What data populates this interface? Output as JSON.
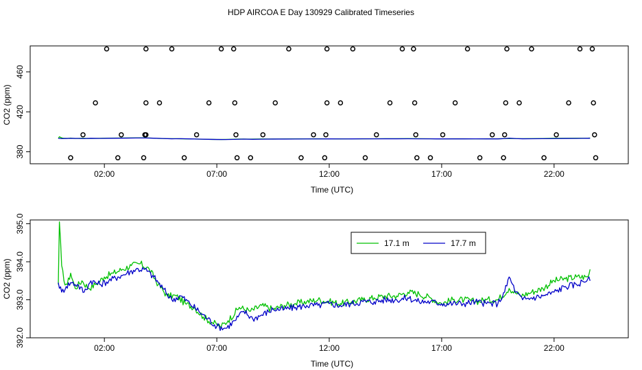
{
  "figure": {
    "title": "HDP AIRCOA E  Day 130929  Calibrated Timeseries"
  },
  "chart_data": [
    {
      "type": "scatter",
      "xlabel": "Time (UTC)",
      "ylabel": "CO2 (ppm)",
      "xlim": [
        -1.3,
        25.3
      ],
      "ylim": [
        368,
        486
      ],
      "x_ticks": [
        {
          "value": 2,
          "label": "02:00"
        },
        {
          "value": 7,
          "label": "07:00"
        },
        {
          "value": 12,
          "label": "12:00"
        },
        {
          "value": 17,
          "label": "17:00"
        },
        {
          "value": 22,
          "label": "22:00"
        }
      ],
      "y_ticks": [
        {
          "value": 380,
          "label": "380"
        },
        {
          "value": 420,
          "label": "420"
        },
        {
          "value": 460,
          "label": "460"
        }
      ],
      "calibration_points": [
        {
          "x": 0.5,
          "y": 374
        },
        {
          "x": 1.05,
          "y": 397
        },
        {
          "x": 1.6,
          "y": 429
        },
        {
          "x": 2.1,
          "y": 483
        },
        {
          "x": 2.6,
          "y": 374
        },
        {
          "x": 2.75,
          "y": 397
        },
        {
          "x": 3.75,
          "y": 374
        },
        {
          "x": 3.8,
          "y": 397
        },
        {
          "x": 3.85,
          "y": 397
        },
        {
          "x": 3.85,
          "y": 429
        },
        {
          "x": 3.85,
          "y": 483
        },
        {
          "x": 4.45,
          "y": 429
        },
        {
          "x": 5.0,
          "y": 483
        },
        {
          "x": 5.55,
          "y": 374
        },
        {
          "x": 6.1,
          "y": 397
        },
        {
          "x": 6.65,
          "y": 429
        },
        {
          "x": 7.2,
          "y": 483
        },
        {
          "x": 7.75,
          "y": 483
        },
        {
          "x": 7.8,
          "y": 429
        },
        {
          "x": 7.85,
          "y": 397
        },
        {
          "x": 7.9,
          "y": 374
        },
        {
          "x": 8.5,
          "y": 374
        },
        {
          "x": 9.05,
          "y": 397
        },
        {
          "x": 9.6,
          "y": 429
        },
        {
          "x": 10.2,
          "y": 483
        },
        {
          "x": 10.75,
          "y": 374
        },
        {
          "x": 11.3,
          "y": 397
        },
        {
          "x": 11.8,
          "y": 374
        },
        {
          "x": 11.85,
          "y": 397
        },
        {
          "x": 11.9,
          "y": 429
        },
        {
          "x": 11.9,
          "y": 483
        },
        {
          "x": 12.5,
          "y": 429
        },
        {
          "x": 13.05,
          "y": 483
        },
        {
          "x": 13.6,
          "y": 374
        },
        {
          "x": 14.1,
          "y": 397
        },
        {
          "x": 14.7,
          "y": 429
        },
        {
          "x": 15.25,
          "y": 483
        },
        {
          "x": 15.75,
          "y": 483
        },
        {
          "x": 15.8,
          "y": 429
        },
        {
          "x": 15.85,
          "y": 397
        },
        {
          "x": 15.9,
          "y": 374
        },
        {
          "x": 16.5,
          "y": 374
        },
        {
          "x": 17.05,
          "y": 397
        },
        {
          "x": 17.6,
          "y": 429
        },
        {
          "x": 18.15,
          "y": 483
        },
        {
          "x": 18.7,
          "y": 374
        },
        {
          "x": 19.25,
          "y": 397
        },
        {
          "x": 19.75,
          "y": 374
        },
        {
          "x": 19.8,
          "y": 397
        },
        {
          "x": 19.85,
          "y": 429
        },
        {
          "x": 19.9,
          "y": 483
        },
        {
          "x": 20.45,
          "y": 429
        },
        {
          "x": 21.0,
          "y": 483
        },
        {
          "x": 21.55,
          "y": 374
        },
        {
          "x": 22.1,
          "y": 397
        },
        {
          "x": 22.65,
          "y": 429
        },
        {
          "x": 23.15,
          "y": 483
        },
        {
          "x": 23.7,
          "y": 483
        },
        {
          "x": 23.75,
          "y": 429
        },
        {
          "x": 23.8,
          "y": 397
        },
        {
          "x": 23.85,
          "y": 374
        }
      ],
      "line_range_x": [
        -0.05,
        23.6
      ],
      "colors": {
        "series_17_1": "#00c000",
        "series_17_7": "#0000c8",
        "points": "#000000"
      }
    },
    {
      "type": "line",
      "xlabel": "Time (UTC)",
      "ylabel": "CO2 (ppm)",
      "xlim": [
        -1.3,
        25.3
      ],
      "ylim": [
        392.0,
        395.1
      ],
      "x_ticks": [
        {
          "value": 2,
          "label": "02:00"
        },
        {
          "value": 7,
          "label": "07:00"
        },
        {
          "value": 12,
          "label": "12:00"
        },
        {
          "value": 17,
          "label": "17:00"
        },
        {
          "value": 22,
          "label": "22:00"
        }
      ],
      "y_ticks": [
        {
          "value": 392.0,
          "label": "392.0"
        },
        {
          "value": 393.0,
          "label": "393.0"
        },
        {
          "value": 394.0,
          "label": "394.0"
        },
        {
          "value": 395.0,
          "label": "395.0"
        }
      ],
      "legend": {
        "placement": "top-center",
        "entries": [
          {
            "name": "17.1 m",
            "color": "#00c000"
          },
          {
            "name": "17.7 m",
            "color": "#0000c8"
          }
        ]
      },
      "series": [
        {
          "name": "17.1 m",
          "color": "#00c000",
          "x": [
            -0.05,
            0.0,
            0.1,
            0.2,
            0.35,
            0.5,
            0.7,
            1.0,
            1.3,
            1.6,
            2.0,
            2.4,
            2.8,
            3.2,
            3.6,
            4.0,
            4.4,
            4.8,
            5.2,
            5.6,
            6.0,
            6.4,
            6.8,
            7.0,
            7.2,
            7.5,
            8.0,
            8.5,
            9.0,
            9.5,
            10.0,
            10.5,
            11.0,
            11.5,
            12.0,
            12.5,
            13.0,
            13.5,
            14.0,
            14.5,
            15.0,
            15.5,
            16.0,
            16.5,
            17.0,
            17.5,
            18.0,
            18.5,
            19.0,
            19.5,
            20.0,
            20.5,
            21.0,
            21.5,
            22.0,
            22.5,
            23.0,
            23.5,
            23.6
          ],
          "values": [
            393.4,
            395.05,
            393.9,
            393.5,
            393.4,
            393.7,
            393.3,
            393.5,
            393.3,
            393.4,
            393.6,
            393.7,
            393.8,
            393.9,
            393.95,
            393.8,
            393.4,
            393.1,
            393.1,
            392.9,
            392.8,
            392.55,
            392.4,
            392.35,
            392.3,
            392.45,
            392.8,
            392.7,
            392.85,
            392.75,
            392.85,
            392.9,
            392.95,
            393.0,
            392.95,
            392.9,
            392.95,
            393.0,
            393.05,
            393.1,
            393.1,
            393.2,
            393.15,
            393.05,
            392.9,
            393.0,
            393.0,
            392.95,
            393.0,
            393.0,
            393.3,
            393.1,
            393.2,
            393.3,
            393.5,
            393.55,
            393.6,
            393.6,
            393.8
          ]
        },
        {
          "name": "17.7 m",
          "color": "#0000c8",
          "x": [
            -0.05,
            0.1,
            0.3,
            0.5,
            0.8,
            1.1,
            1.4,
            1.8,
            2.2,
            2.6,
            3.0,
            3.4,
            3.8,
            4.2,
            4.6,
            5.0,
            5.4,
            5.8,
            6.2,
            6.6,
            7.0,
            7.4,
            7.8,
            8.2,
            8.6,
            9.0,
            9.5,
            10.0,
            10.5,
            11.0,
            11.5,
            12.0,
            12.5,
            13.0,
            13.5,
            14.0,
            14.5,
            15.0,
            15.5,
            16.0,
            16.5,
            17.0,
            17.5,
            18.0,
            18.5,
            19.0,
            19.5,
            19.8,
            20.0,
            20.3,
            20.6,
            21.0,
            21.5,
            22.0,
            22.5,
            23.0,
            23.5,
            23.6
          ],
          "values": [
            393.45,
            393.2,
            393.35,
            393.45,
            393.4,
            393.2,
            393.5,
            393.4,
            393.5,
            393.6,
            393.7,
            393.8,
            393.8,
            393.6,
            393.3,
            393.0,
            393.1,
            392.9,
            392.7,
            392.5,
            392.3,
            392.25,
            392.45,
            392.7,
            392.5,
            392.6,
            392.75,
            392.75,
            392.8,
            392.85,
            392.85,
            392.9,
            392.85,
            392.9,
            392.95,
            392.95,
            393.0,
            393.0,
            393.05,
            392.95,
            392.95,
            392.9,
            392.9,
            392.9,
            392.95,
            392.9,
            392.9,
            393.2,
            393.6,
            393.2,
            393.0,
            393.05,
            393.1,
            393.2,
            393.35,
            393.4,
            393.55,
            393.5
          ]
        }
      ]
    }
  ]
}
